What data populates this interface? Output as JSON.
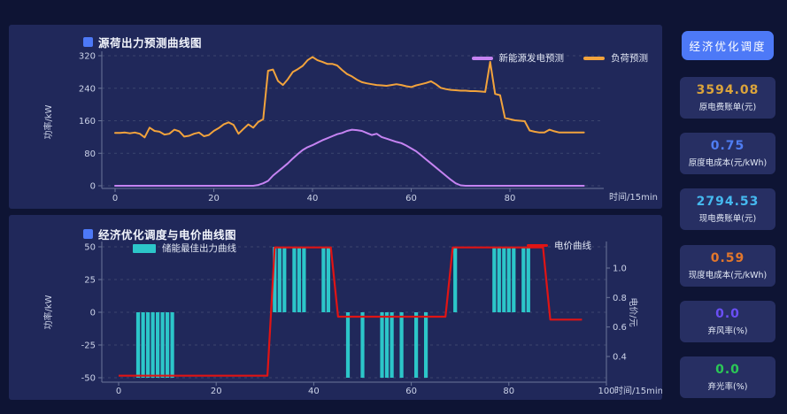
{
  "colors": {
    "accent_blue": "#4d79f7",
    "panel_bg": "#20285a",
    "page_bg": "#0e1434",
    "grid": "#525e80",
    "axis": "#6b7699",
    "cyan": "#2cc6c9",
    "red": "#e01414",
    "orange": "#f2a33c",
    "purple": "#c583f2"
  },
  "chart_data": [
    {
      "type": "line",
      "title": "源荷出力预测曲线图",
      "xlabel": "时间/15min",
      "ylabel": "功率/kW",
      "xlim": [
        0,
        95
      ],
      "ylim": [
        0,
        320
      ],
      "xticks": [
        0,
        20,
        40,
        60,
        80
      ],
      "yticks": [
        0,
        80,
        160,
        240,
        320
      ],
      "grid": "dashed",
      "legend_position": "top-right",
      "x_start": 0,
      "x_step": 1,
      "series": [
        {
          "name": "新能源发电预测",
          "color": "#c583f2",
          "y": [
            0,
            0,
            0,
            0,
            0,
            0,
            0,
            0,
            0,
            0,
            0,
            0,
            0,
            0,
            0,
            0,
            0,
            0,
            0,
            0,
            0,
            0,
            0,
            0,
            0,
            0,
            0,
            0,
            0,
            2,
            6,
            12,
            25,
            35,
            45,
            55,
            67,
            78,
            88,
            95,
            100,
            106,
            112,
            117,
            122,
            127,
            130,
            135,
            138,
            137,
            135,
            130,
            125,
            128,
            120,
            116,
            112,
            108,
            105,
            99,
            92,
            85,
            75,
            65,
            55,
            45,
            35,
            25,
            15,
            6,
            1,
            0,
            0,
            0,
            0,
            0,
            0,
            0,
            0,
            0,
            0,
            0,
            0,
            0,
            0,
            0,
            0,
            0,
            0,
            0,
            0,
            0,
            0,
            0,
            0,
            0
          ]
        },
        {
          "name": "负荷预测",
          "color": "#f2a33c",
          "y": [
            130,
            130,
            131,
            129,
            131,
            128,
            119,
            143,
            135,
            133,
            126,
            128,
            138,
            134,
            121,
            123,
            128,
            131,
            122,
            125,
            135,
            142,
            151,
            156,
            150,
            128,
            140,
            151,
            143,
            157,
            164,
            283,
            286,
            258,
            248,
            262,
            280,
            287,
            295,
            309,
            317,
            309,
            305,
            300,
            300,
            296,
            285,
            275,
            269,
            261,
            255,
            252,
            250,
            248,
            247,
            246,
            248,
            250,
            248,
            245,
            243,
            247,
            250,
            253,
            257,
            250,
            241,
            238,
            236,
            235,
            234,
            234,
            233,
            233,
            232,
            231,
            305,
            226,
            223,
            167,
            164,
            161,
            160,
            159,
            136,
            133,
            131,
            131,
            138,
            134,
            131,
            131,
            131,
            131,
            131,
            131
          ]
        }
      ]
    },
    {
      "type": "bar+line",
      "title": "经济优化调度与电价曲线图",
      "xlabel": "时间/15min",
      "ylabel_left": "功率/kW",
      "ylabel_right": "电价/元",
      "xlim": [
        0,
        100
      ],
      "ylim_left": [
        -50,
        50
      ],
      "ylim_right": [
        0.26,
        1.14
      ],
      "xticks": [
        0,
        20,
        40,
        60,
        80,
        100
      ],
      "yticks_left": [
        -50,
        -25,
        0,
        25,
        50
      ],
      "yticks_right": [
        0.4,
        0.6,
        0.8,
        1.0
      ],
      "grid": "dashed",
      "bars": {
        "name": "储能最佳出力曲线",
        "color": "#2cc6c9",
        "points": [
          {
            "x": 4,
            "v": -50
          },
          {
            "x": 5,
            "v": -50
          },
          {
            "x": 6,
            "v": -50
          },
          {
            "x": 7,
            "v": -50
          },
          {
            "x": 8,
            "v": -50
          },
          {
            "x": 9,
            "v": -50
          },
          {
            "x": 10,
            "v": -50
          },
          {
            "x": 11,
            "v": -50
          },
          {
            "x": 32,
            "v": 50
          },
          {
            "x": 33,
            "v": 50
          },
          {
            "x": 34,
            "v": 50
          },
          {
            "x": 36,
            "v": 50
          },
          {
            "x": 37,
            "v": 50
          },
          {
            "x": 38,
            "v": 50
          },
          {
            "x": 42,
            "v": 50
          },
          {
            "x": 43,
            "v": 50
          },
          {
            "x": 47,
            "v": -50
          },
          {
            "x": 50,
            "v": -50
          },
          {
            "x": 54,
            "v": -50
          },
          {
            "x": 55,
            "v": -50
          },
          {
            "x": 56,
            "v": -50
          },
          {
            "x": 58,
            "v": -50
          },
          {
            "x": 61,
            "v": -50
          },
          {
            "x": 63,
            "v": -50
          },
          {
            "x": 69,
            "v": 50
          },
          {
            "x": 77,
            "v": 50
          },
          {
            "x": 78,
            "v": 50
          },
          {
            "x": 79,
            "v": 50
          },
          {
            "x": 80,
            "v": 50
          },
          {
            "x": 81,
            "v": 50
          },
          {
            "x": 83,
            "v": 50
          },
          {
            "x": 84,
            "v": 50
          }
        ]
      },
      "line": {
        "name": "电价曲线",
        "color": "#e01414",
        "axis": "right",
        "points": [
          [
            0,
            0.27
          ],
          [
            30.5,
            0.27
          ],
          [
            32,
            1.14
          ],
          [
            43.5,
            1.14
          ],
          [
            45,
            0.67
          ],
          [
            67,
            0.67
          ],
          [
            68.5,
            1.14
          ],
          [
            87,
            1.14
          ],
          [
            88.5,
            0.65
          ],
          [
            95,
            0.65
          ]
        ]
      }
    }
  ],
  "sidebar": {
    "button_label": "经济优化调度",
    "cards": [
      {
        "value": "3594.08",
        "label": "原电费账单(元)",
        "color": "#dba43b"
      },
      {
        "value": "0.75",
        "label": "原度电成本(元/kWh)",
        "color": "#4f7df2"
      },
      {
        "value": "2794.53",
        "label": "现电费账单(元)",
        "color": "#45b9ef"
      },
      {
        "value": "0.59",
        "label": "现度电成本(元/kWh)",
        "color": "#e2772c"
      },
      {
        "value": "0.0",
        "label": "弃风率(%)",
        "color": "#6a4ff5"
      },
      {
        "value": "0.0",
        "label": "弃光率(%)",
        "color": "#2bc856"
      }
    ]
  }
}
